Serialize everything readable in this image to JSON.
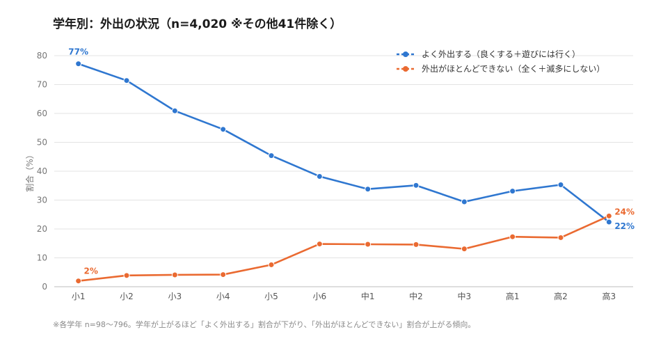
{
  "title": "学年別：外出の状況（n=4,020 ※その他41件除く）",
  "note": "※各学年 n=98〜796。学年が上がるほど「よく外出する」割合が下がり、「外出がほとんどできない」割合が上がる傾向。",
  "chart_data": {
    "type": "line",
    "title": "学年別：外出の状況（n=4,020 ※その他41件除く）",
    "xlabel": "",
    "ylabel": "割合（%）",
    "ylim": [
      0,
      80
    ],
    "yticks": [
      0,
      10,
      20,
      30,
      40,
      50,
      60,
      70,
      80
    ],
    "grid": true,
    "legend_position": "top-right",
    "categories": [
      "小1",
      "小2",
      "小3",
      "小4",
      "小5",
      "小6",
      "中1",
      "中2",
      "中3",
      "高1",
      "高2",
      "高3"
    ],
    "series": [
      {
        "name": "よく外出する（良くする＋遊びには行く）",
        "color": "#2f77d0",
        "values": [
          77.2,
          71.4,
          60.9,
          54.5,
          45.4,
          38.2,
          33.8,
          35.1,
          29.4,
          33.1,
          35.3,
          22.4
        ],
        "labels": {
          "0": "77%",
          "11": "22%"
        }
      },
      {
        "name": "外出がほとんどできない（全く＋滅多にしない）",
        "color": "#ea6a31",
        "values": [
          2.0,
          3.9,
          4.1,
          4.2,
          7.6,
          14.8,
          14.7,
          14.6,
          13.1,
          17.3,
          17.0,
          24.5
        ],
        "labels": {
          "0": "2%",
          "11": "24%"
        }
      }
    ]
  }
}
